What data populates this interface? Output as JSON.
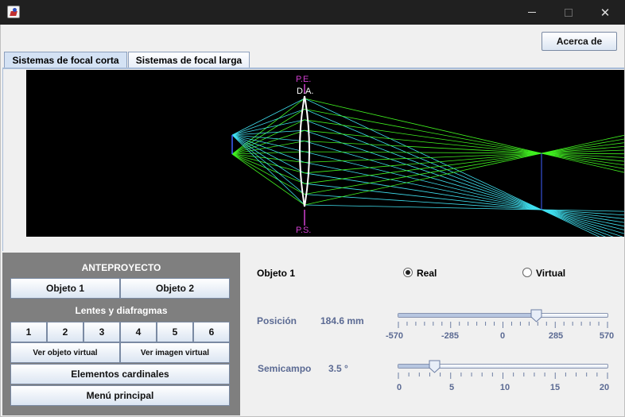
{
  "window": {
    "about_label": "Acerca de"
  },
  "tabs": [
    {
      "label": "Sistemas de focal corta",
      "active": true
    },
    {
      "label": "Sistemas de focal larga",
      "active": false
    }
  ],
  "diagram": {
    "label_pe": "P.E.",
    "label_da": "D.A.",
    "label_ps": "P.S.",
    "colors": {
      "background": "#000000",
      "ray_cyan": "#40e0f0",
      "ray_green": "#40f020",
      "label_magenta": "#d040d0",
      "lens": "#ffffff",
      "axis": "#4060ff"
    }
  },
  "panel": {
    "anteproyecto_title": "ANTEPROYECTO",
    "objeto1_label": "Objeto 1",
    "objeto2_label": "Objeto 2",
    "lentes_title": "Lentes y diafragmas",
    "lens_buttons": [
      "1",
      "2",
      "3",
      "4",
      "5",
      "6"
    ],
    "ver_objeto_virtual": "Ver objeto virtual",
    "ver_imagen_virtual": "Ver imagen virtual",
    "elementos_cardinales": "Elementos cardinales",
    "menu_principal": "Menú principal"
  },
  "settings": {
    "object_title": "Objeto 1",
    "radio_real": "Real",
    "radio_virtual": "Virtual",
    "selected": "Real",
    "posicion_label": "Posición",
    "posicion_value": "184.6 mm",
    "posicion_slider": {
      "min": -570,
      "max": 570,
      "value": 184.6,
      "ticks": [
        "-570",
        "-285",
        "0",
        "285",
        "570"
      ]
    },
    "semicampo_label": "Semicampo",
    "semicampo_value": "3.5 °",
    "semicampo_slider": {
      "min": 0,
      "max": 20,
      "value": 3.5,
      "ticks": [
        "0",
        "5",
        "10",
        "15",
        "20"
      ]
    }
  }
}
